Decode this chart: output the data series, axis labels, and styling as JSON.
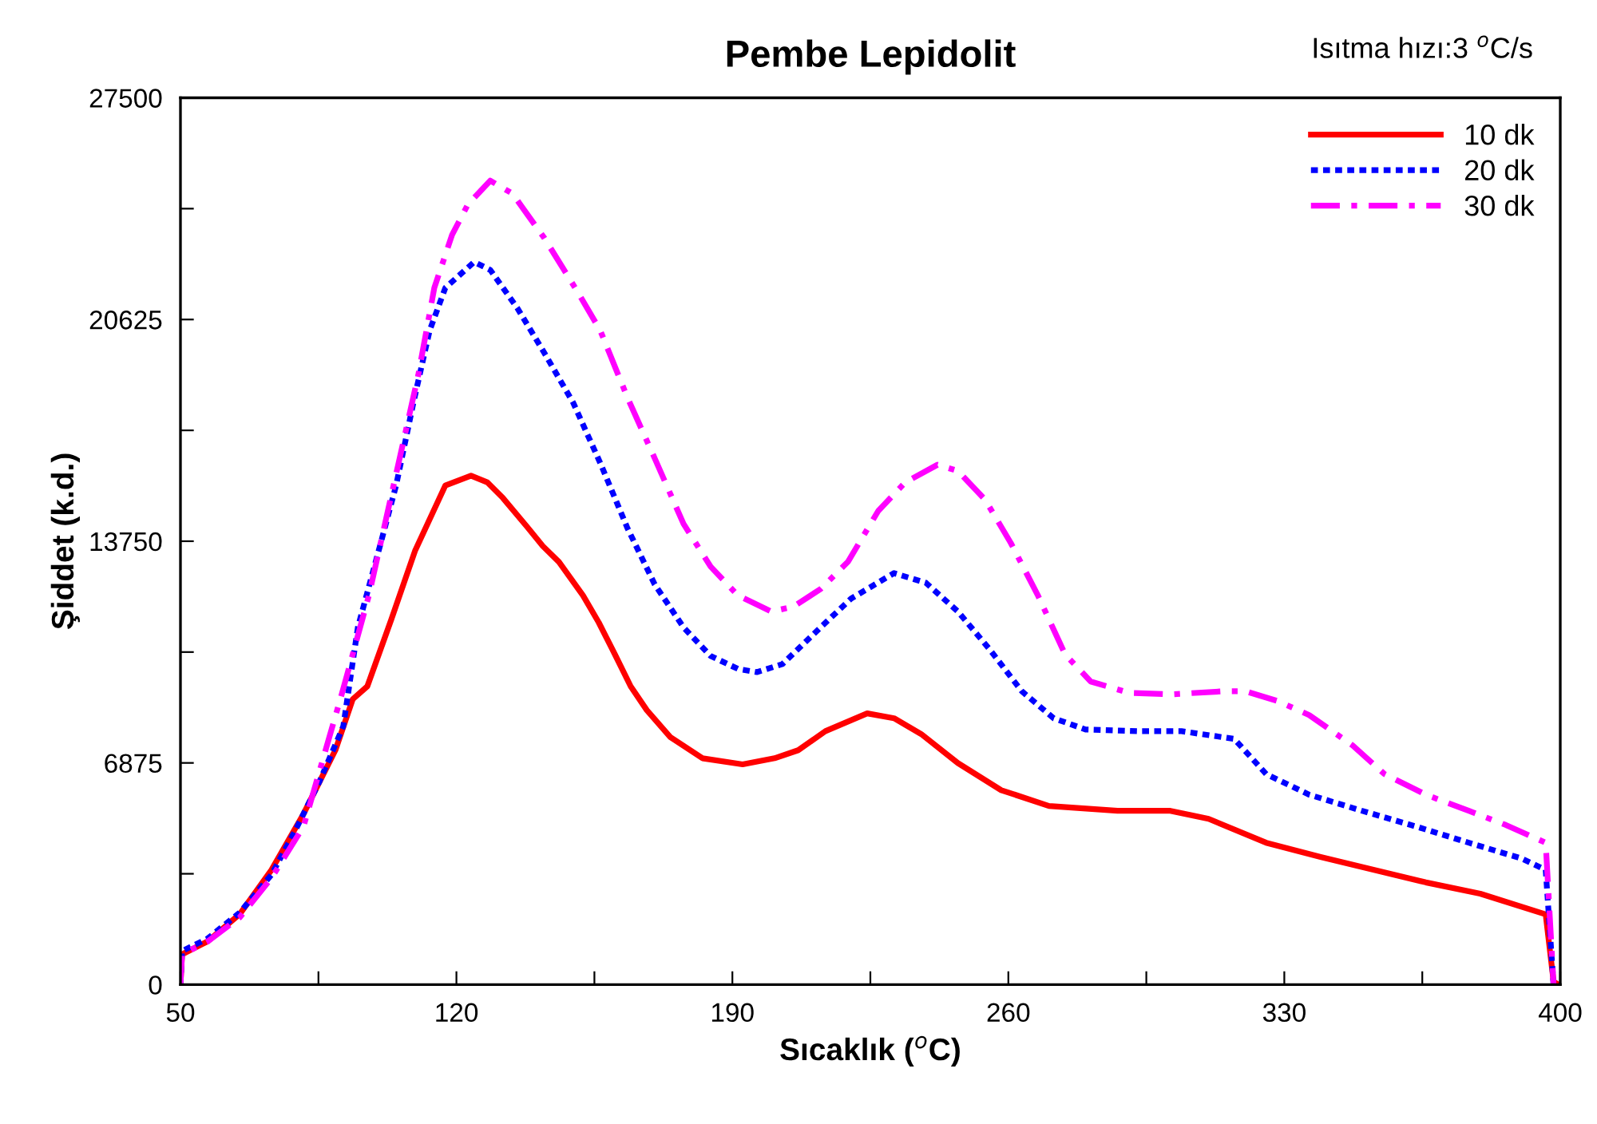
{
  "chart_data": {
    "type": "line",
    "title": "Pembe Lepidolit",
    "xlabel": "Sıcaklık ($^{o}$C)",
    "ylabel": "Şiddet (k.d.)",
    "annotations": [
      "Isıtma hızı:3 $^{o}$C/s"
    ],
    "xlim": [
      50,
      400
    ],
    "xticks": [
      50,
      {
        "value": 85,
        "label": null
      },
      120,
      {
        "value": 155,
        "label": null
      },
      190,
      {
        "value": 225,
        "label": null
      },
      260,
      {
        "value": 295,
        "label": null
      },
      330,
      {
        "value": 365,
        "label": null
      },
      400
    ],
    "ylim": [
      0,
      27500
    ],
    "yticks": [
      0,
      {
        "value": 3437.5,
        "label": null
      },
      6875,
      {
        "value": 10312.5,
        "label": null
      },
      13750,
      {
        "value": 17187.5,
        "label": null
      },
      20625,
      {
        "value": 24062.5,
        "label": null
      },
      27500
    ],
    "grid": false,
    "legend": "top right",
    "marker": "none",
    "series": [
      {
        "name": "10 dk",
        "color": "#ff0000",
        "line_style": "solid",
        "x": [
          50,
          50.4,
          56.9,
          65,
          73.1,
          81.2,
          89.3,
          93.7,
          97.4,
          103.5,
          109.5,
          117.2,
          123.7,
          127.8,
          131.8,
          137.9,
          141.9,
          146,
          152.1,
          156.1,
          160.2,
          164.2,
          168.3,
          174.3,
          182.4,
          192.6,
          200.7,
          206.7,
          213.6,
          224.2,
          231,
          237.9,
          247.2,
          258.2,
          270.3,
          287.7,
          301.1,
          310.8,
          325.4,
          339.2,
          352.6,
          365.9,
          379.7,
          396.3,
          398.3,
          399.5
        ],
        "values": [
          0,
          940,
          1340,
          2180,
          3560,
          5290,
          7270,
          8850,
          9250,
          11330,
          13450,
          15480,
          15780,
          15580,
          15090,
          14200,
          13600,
          13110,
          12070,
          11230,
          10240,
          9250,
          8510,
          7670,
          7020,
          6830,
          7020,
          7270,
          7860,
          8410,
          8260,
          7770,
          6870,
          6030,
          5540,
          5390,
          5390,
          5140,
          4400,
          3960,
          3560,
          3170,
          2820,
          2180,
          100,
          0
        ]
      },
      {
        "name": "20 dk",
        "color": "#0000ff",
        "line_style": "dotted",
        "x": [
          50,
          50.4,
          56.9,
          65,
          73.1,
          79.2,
          85.2,
          91.3,
          95,
          100.6,
          104.7,
          109.1,
          113.2,
          117.2,
          124.5,
          128.6,
          135.5,
          142.3,
          149.6,
          156.5,
          163.4,
          170.3,
          177.6,
          184.5,
          191.4,
          196.2,
          202.7,
          212.4,
          220.1,
          231,
          239.1,
          247.2,
          255.3,
          263.4,
          271.5,
          279.6,
          293,
          303.9,
          317.3,
          325.4,
          336.3,
          349.7,
          363.5,
          376.8,
          390.2,
          396.3,
          398.3
        ],
        "values": [
          0,
          1040,
          1430,
          2230,
          3410,
          4800,
          6280,
          8010,
          11080,
          13600,
          15480,
          18050,
          20280,
          21610,
          22410,
          22160,
          20970,
          19590,
          18050,
          16170,
          14150,
          12410,
          11080,
          10190,
          9790,
          9690,
          9940,
          11080,
          11970,
          12760,
          12460,
          11570,
          10390,
          9100,
          8260,
          7910,
          7860,
          7860,
          7620,
          6530,
          5890,
          5390,
          4900,
          4400,
          3910,
          3560,
          0
        ]
      },
      {
        "name": "30 dk",
        "color": "#ff00ff",
        "line_style": "dashdot",
        "x": [
          50,
          50.4,
          56.9,
          65,
          73.1,
          81.2,
          90.9,
          97.8,
          104.7,
          110.3,
          114.4,
          118.9,
          122.9,
          128.6,
          134.2,
          142.3,
          150.8,
          156.5,
          163.4,
          170.3,
          177.6,
          184.5,
          191.4,
          199.9,
          205.5,
          212.4,
          219.3,
          227,
          233.9,
          242,
          247.2,
          254.1,
          260.6,
          267.5,
          274.4,
          280.9,
          290.6,
          301.1,
          314.9,
          320.1,
          328.2,
          336.3,
          347.3,
          355.4,
          365.9,
          376.8,
          386.2,
          396.3,
          398.3
        ],
        "values": [
          0,
          940,
          1340,
          2080,
          3310,
          4900,
          9000,
          12070,
          15830,
          18890,
          21610,
          23250,
          24190,
          24930,
          24530,
          23150,
          21470,
          20280,
          18200,
          16320,
          14290,
          12960,
          12070,
          11570,
          11720,
          12270,
          13110,
          14690,
          15580,
          16120,
          15930,
          15040,
          13700,
          12070,
          10240,
          9400,
          9050,
          9000,
          9100,
          9100,
          8800,
          8360,
          7420,
          6530,
          5890,
          5390,
          4950,
          4400,
          0
        ]
      }
    ]
  }
}
